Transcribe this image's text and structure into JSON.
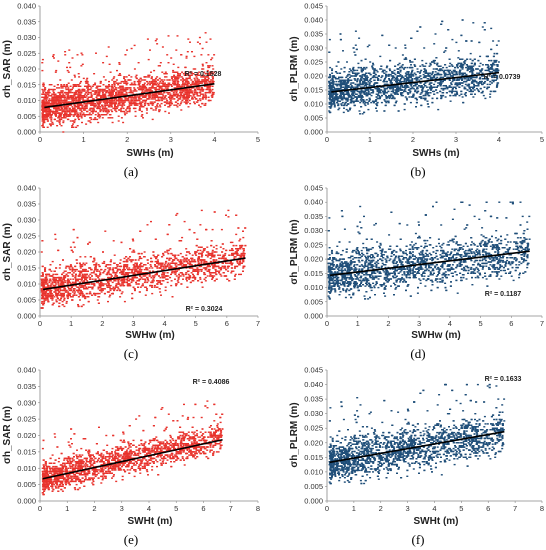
{
  "colors": {
    "red": "#e8322c",
    "blue": "#1f4e79",
    "trend": "#000000"
  },
  "chart_data": [
    {
      "type": "scatter",
      "panel": "(a)",
      "color": "red",
      "ylabel": "σh_SAR  (m)",
      "xlabel": "SWHs  (m)",
      "xlim": [
        0,
        5
      ],
      "xticks": [
        "0",
        "1",
        "2",
        "3",
        "4",
        "5"
      ],
      "ylim": [
        0,
        0.04
      ],
      "yticks": [
        "0.000",
        "0.005",
        "0.010",
        "0.015",
        "0.020",
        "0.025",
        "0.030",
        "0.035",
        "0.040"
      ],
      "trend": {
        "x": [
          0.1,
          4.0
        ],
        "y": [
          0.0078,
          0.0153
        ]
      },
      "r2_label": "R² = 0.1528",
      "cloud": {
        "x_range": [
          0.05,
          4.0
        ],
        "y_center_at_xmin": 0.0078,
        "y_center_at_xmax": 0.0153,
        "y_spread": 0.009,
        "y_max": 0.035
      }
    },
    {
      "type": "scatter",
      "panel": "(b)",
      "color": "blue",
      "ylabel": "σh_PLRM  (m)",
      "xlabel": "SWHs  (m)",
      "xlim": [
        0,
        5
      ],
      "xticks": [
        "0",
        "1",
        "2",
        "3",
        "4",
        "5"
      ],
      "ylim": [
        0,
        0.045
      ],
      "yticks": [
        "0.000",
        "0.005",
        "0.010",
        "0.015",
        "0.020",
        "0.025",
        "0.030",
        "0.035",
        "0.040",
        "0.045"
      ],
      "trend": {
        "x": [
          0.1,
          4.0
        ],
        "y": [
          0.0143,
          0.0212
        ]
      },
      "r2_label": "R² = 0.0739",
      "cloud": {
        "x_range": [
          0.05,
          4.0
        ],
        "y_center_at_xmin": 0.0145,
        "y_center_at_xmax": 0.021,
        "y_spread": 0.011,
        "y_max": 0.04
      }
    },
    {
      "type": "scatter",
      "panel": "(c)",
      "color": "red",
      "ylabel": "σh_SAR  (m)",
      "xlabel": "SWHw  (m)",
      "xlim": [
        0,
        7
      ],
      "xticks": [
        "0",
        "1",
        "2",
        "3",
        "4",
        "5",
        "6",
        "7"
      ],
      "ylim": [
        0,
        0.04
      ],
      "yticks": [
        "0.000",
        "0.005",
        "0.010",
        "0.015",
        "0.020",
        "0.025",
        "0.030",
        "0.035",
        "0.040"
      ],
      "trend": {
        "x": [
          0.1,
          6.6
        ],
        "y": [
          0.0083,
          0.0181
        ]
      },
      "r2_label": "R² = 0.3024",
      "cloud": {
        "x_range": [
          0.05,
          6.6
        ],
        "y_center_at_xmin": 0.0085,
        "y_center_at_xmax": 0.0185,
        "y_spread": 0.009,
        "y_max": 0.037
      }
    },
    {
      "type": "scatter",
      "panel": "(d)",
      "color": "blue",
      "ylabel": "σh_PLRM  (m)",
      "xlabel": "SWHw  (m)",
      "xlim": [
        0,
        7
      ],
      "xticks": [
        "0",
        "1",
        "2",
        "3",
        "4",
        "5",
        "6",
        "7"
      ],
      "ylim": [
        0,
        0.045
      ],
      "yticks": [
        "0.000",
        "0.005",
        "0.010",
        "0.015",
        "0.020",
        "0.025",
        "0.030",
        "0.035",
        "0.040",
        "0.045"
      ],
      "trend": {
        "x": [
          0.1,
          6.6
        ],
        "y": [
          0.0143,
          0.0228
        ]
      },
      "r2_label": "R² = 0.1187",
      "cloud": {
        "x_range": [
          0.05,
          6.6
        ],
        "y_center_at_xmin": 0.0145,
        "y_center_at_xmax": 0.0225,
        "y_spread": 0.012,
        "y_max": 0.04
      }
    },
    {
      "type": "scatter",
      "panel": "(e)",
      "color": "red",
      "ylabel": "σh_SAR  (m)",
      "xlabel": "SWHt  (m)",
      "xlim": [
        0,
        8
      ],
      "xticks": [
        "0",
        "1",
        "2",
        "3",
        "4",
        "5",
        "6",
        "7",
        "8"
      ],
      "ylim": [
        0,
        0.04
      ],
      "yticks": [
        "0.000",
        "0.005",
        "0.010",
        "0.015",
        "0.020",
        "0.025",
        "0.030",
        "0.035",
        "0.040"
      ],
      "trend": {
        "x": [
          0.1,
          6.7
        ],
        "y": [
          0.0068,
          0.0187
        ]
      },
      "r2_label": "R² = 0.4086",
      "cloud": {
        "x_range": [
          0.1,
          6.7
        ],
        "y_center_at_xmin": 0.0068,
        "y_center_at_xmax": 0.0195,
        "y_spread": 0.007,
        "y_max": 0.035
      }
    },
    {
      "type": "scatter",
      "panel": "(f)",
      "color": "blue",
      "ylabel": "σh_PLRM  (m)",
      "xlabel": "SWHt  (m)",
      "xlim": [
        0,
        8
      ],
      "xticks": [
        "0",
        "1",
        "2",
        "3",
        "4",
        "5",
        "6",
        "7",
        "8"
      ],
      "ylim": [
        0,
        0.045
      ],
      "yticks": [
        "0.000",
        "0.005",
        "0.010",
        "0.015",
        "0.020",
        "0.025",
        "0.030",
        "0.035",
        "0.040",
        "0.045"
      ],
      "trend": {
        "x": [
          0.1,
          6.6
        ],
        "y": [
          0.0133,
          0.0238
        ]
      },
      "r2_label": "R² = 0.1633",
      "cloud": {
        "x_range": [
          0.1,
          6.6
        ],
        "y_center_at_xmin": 0.0135,
        "y_center_at_xmax": 0.0235,
        "y_spread": 0.011,
        "y_max": 0.04
      }
    }
  ]
}
